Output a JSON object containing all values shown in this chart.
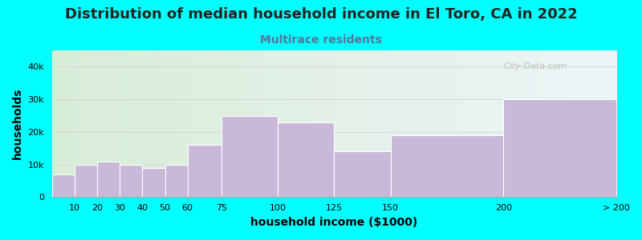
{
  "title": "Distribution of median household income in El Toro, CA in 2022",
  "subtitle": "Multirace residents",
  "xlabel": "household income ($1000)",
  "ylabel": "households",
  "bin_edges": [
    0,
    10,
    20,
    30,
    40,
    50,
    60,
    75,
    100,
    125,
    150,
    200,
    250
  ],
  "bin_labels": [
    "10",
    "20",
    "30",
    "40",
    "50",
    "60",
    "75",
    "100",
    "125",
    "150",
    "200",
    "> 200"
  ],
  "bar_values": [
    7000,
    10000,
    11000,
    10000,
    9000,
    10000,
    16000,
    25000,
    23000,
    14000,
    19000,
    30000
  ],
  "bar_color": "#c9b8d8",
  "bar_edgecolor": "#ffffff",
  "background_color": "#00ffff",
  "plot_bg_left": "#d8edd8",
  "plot_bg_right": "#eef5f8",
  "ylim": [
    0,
    45000
  ],
  "yticks": [
    0,
    10000,
    20000,
    30000,
    40000
  ],
  "ytick_labels": [
    "0",
    "10k",
    "20k",
    "30k",
    "40k"
  ],
  "title_fontsize": 13,
  "subtitle_fontsize": 10,
  "subtitle_color": "#557799",
  "axis_label_fontsize": 10,
  "tick_fontsize": 8,
  "watermark": "City-Data.com"
}
